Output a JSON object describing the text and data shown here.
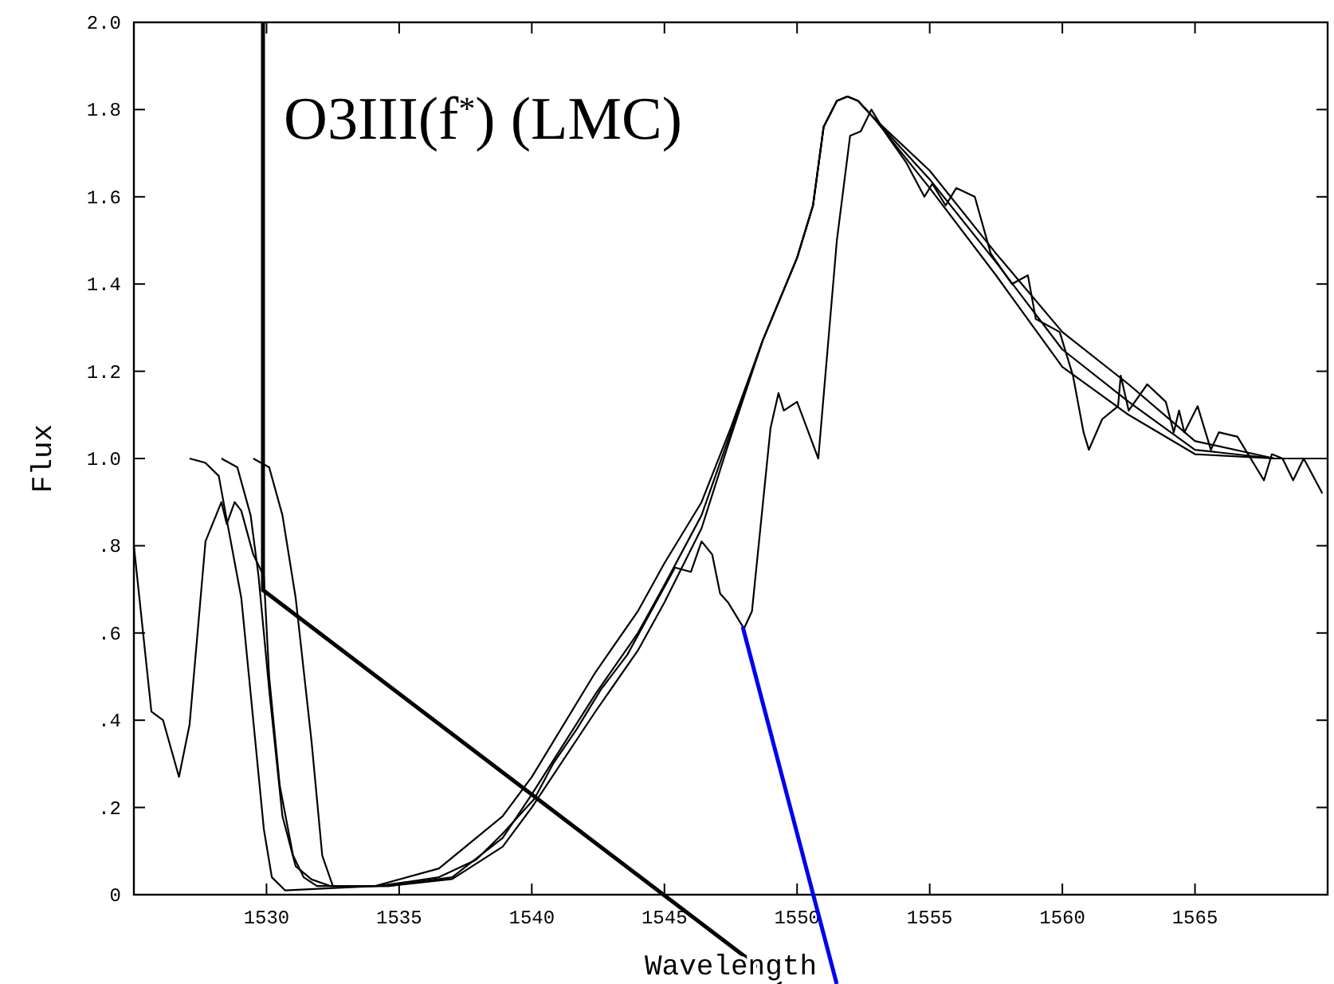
{
  "chart_data": {
    "type": "line",
    "title": "O3III(f$^{*}$) (LMC)",
    "xlabel": "Wavelength",
    "ylabel": "Flux",
    "xlim": [
      1525,
      1570
    ],
    "ylim": [
      0,
      2.0
    ],
    "xticks": [
      1530,
      1535,
      1540,
      1545,
      1550,
      1555,
      1560,
      1565
    ],
    "yticks": [
      0,
      {
        "value": 0.2,
        "label": ".2"
      },
      {
        "value": 0.4,
        "label": ".4"
      },
      {
        "value": 0.6,
        "label": ".6"
      },
      {
        "value": 0.8,
        "label": ".8"
      },
      {
        "value": 1.0,
        "label": "1.0"
      },
      {
        "value": 1.2,
        "label": "1.2"
      },
      {
        "value": 1.4,
        "label": "1.4"
      },
      {
        "value": 1.6,
        "label": "1.6"
      },
      {
        "value": 1.8,
        "label": "1.8"
      },
      {
        "value": 2.0,
        "label": "2.0"
      }
    ],
    "marker": "none",
    "line_style": "solid",
    "series": [
      {
        "color": "#000000",
        "x": [
          1525.0,
          1525.66,
          1526.1,
          1526.7,
          1527.1,
          1527.7,
          1528.3,
          1528.5,
          1528.8,
          1529.05,
          1529.5,
          1529.9,
          1530.1,
          1530.5,
          1531.0,
          1531.4,
          1531.9,
          1532.8,
          1534.2,
          1535.4,
          1536.5,
          1537.9,
          1538.9,
          1540.1,
          1540.8,
          1541.7,
          1542.6,
          1543.6,
          1544.5,
          1545.4,
          1546.0,
          1546.4,
          1546.8,
          1547.1,
          1547.4,
          1548.0,
          1548.3,
          1549.0,
          1549.3,
          1549.5,
          1550.0,
          1550.8,
          1551.5,
          1552.0,
          1552.4,
          1552.8,
          1553.4,
          1554.1,
          1554.8,
          1555.1,
          1555.6,
          1556.0,
          1556.7,
          1557.3,
          1558.1,
          1558.7,
          1559.0,
          1559.9,
          1560.4,
          1560.8,
          1561.0,
          1561.5,
          1562.1,
          1562.2,
          1562.5,
          1563.2,
          1563.9,
          1564.2,
          1564.4,
          1564.6,
          1565.1,
          1565.6,
          1565.9,
          1566.6,
          1567.1,
          1567.6,
          1567.9,
          1568.3,
          1568.7,
          1569.1,
          1569.8
        ],
        "values": [
          0.8,
          0.42,
          0.4,
          0.27,
          0.39,
          0.81,
          0.9,
          0.85,
          0.9,
          0.88,
          0.78,
          0.73,
          0.5,
          0.25,
          0.09,
          0.04,
          0.02,
          0.02,
          0.02,
          0.03,
          0.04,
          0.08,
          0.14,
          0.22,
          0.3,
          0.38,
          0.47,
          0.55,
          0.65,
          0.75,
          0.74,
          0.81,
          0.78,
          0.69,
          0.67,
          0.61,
          0.65,
          1.07,
          1.15,
          1.11,
          1.13,
          1.0,
          1.5,
          1.74,
          1.75,
          1.8,
          1.74,
          1.68,
          1.6,
          1.63,
          1.58,
          1.62,
          1.6,
          1.47,
          1.4,
          1.42,
          1.32,
          1.29,
          1.19,
          1.06,
          1.02,
          1.09,
          1.12,
          1.19,
          1.11,
          1.17,
          1.13,
          1.06,
          1.11,
          1.06,
          1.12,
          1.02,
          1.06,
          1.05,
          1.0,
          0.95,
          1.01,
          1.0,
          0.95,
          1.0,
          0.92
        ]
      },
      {
        "color": "#000000",
        "x": [
          1527.1,
          1527.7,
          1528.2,
          1528.5,
          1529.05,
          1529.5,
          1529.9,
          1530.2,
          1530.7,
          1534.1,
          1536.5,
          1538.9,
          1540.0,
          1542.4,
          1544.0,
          1545.0,
          1546.4,
          1547.5,
          1548.7,
          1550.0,
          1550.6,
          1551.0,
          1551.5,
          1551.9,
          1552.3,
          1552.9,
          1555.0,
          1557.5,
          1560.0,
          1562.5,
          1565.0,
          1568.0,
          1569.8
        ],
        "values": [
          1.0,
          0.99,
          0.96,
          0.86,
          0.68,
          0.4,
          0.15,
          0.04,
          0.01,
          0.02,
          0.06,
          0.18,
          0.27,
          0.51,
          0.65,
          0.76,
          0.9,
          1.07,
          1.27,
          1.46,
          1.58,
          1.76,
          1.82,
          1.83,
          1.82,
          1.78,
          1.66,
          1.47,
          1.29,
          1.17,
          1.04,
          1.0,
          1.0
        ]
      },
      {
        "color": "#000000",
        "x": [
          1528.3,
          1528.9,
          1529.4,
          1529.7,
          1530.1,
          1530.6,
          1531.1,
          1531.7,
          1532.4,
          1534.6,
          1537.0,
          1538.9,
          1540.0,
          1542.4,
          1544.0,
          1545.0,
          1546.4,
          1547.5,
          1548.7,
          1550.0,
          1550.6,
          1551.0,
          1551.5,
          1551.9,
          1552.3,
          1552.9,
          1555.0,
          1557.5,
          1560.0,
          1562.5,
          1565.0,
          1568.0,
          1569.8
        ],
        "values": [
          1.0,
          0.98,
          0.87,
          0.73,
          0.47,
          0.18,
          0.065,
          0.035,
          0.02,
          0.02,
          0.04,
          0.13,
          0.23,
          0.46,
          0.6,
          0.71,
          0.87,
          1.06,
          1.27,
          1.46,
          1.58,
          1.76,
          1.82,
          1.83,
          1.82,
          1.78,
          1.64,
          1.45,
          1.25,
          1.13,
          1.02,
          1.0,
          1.0
        ]
      },
      {
        "color": "#000000",
        "x": [
          1529.5,
          1530.1,
          1530.6,
          1531.1,
          1531.7,
          1532.1,
          1532.5,
          1534.6,
          1537.0,
          1538.9,
          1540.0,
          1542.4,
          1544.0,
          1545.0,
          1546.4,
          1547.5,
          1548.7,
          1550.0,
          1550.6,
          1551.0,
          1551.5,
          1551.9,
          1552.3,
          1552.9,
          1555.0,
          1557.5,
          1560.0,
          1562.5,
          1565.0,
          1568.0,
          1569.8
        ],
        "values": [
          1.0,
          0.98,
          0.87,
          0.68,
          0.35,
          0.09,
          0.02,
          0.02,
          0.036,
          0.11,
          0.2,
          0.42,
          0.56,
          0.67,
          0.84,
          1.05,
          1.27,
          1.46,
          1.58,
          1.76,
          1.82,
          1.83,
          1.82,
          1.78,
          1.62,
          1.42,
          1.21,
          1.1,
          1.01,
          1.0,
          1.0
        ]
      }
    ]
  }
}
